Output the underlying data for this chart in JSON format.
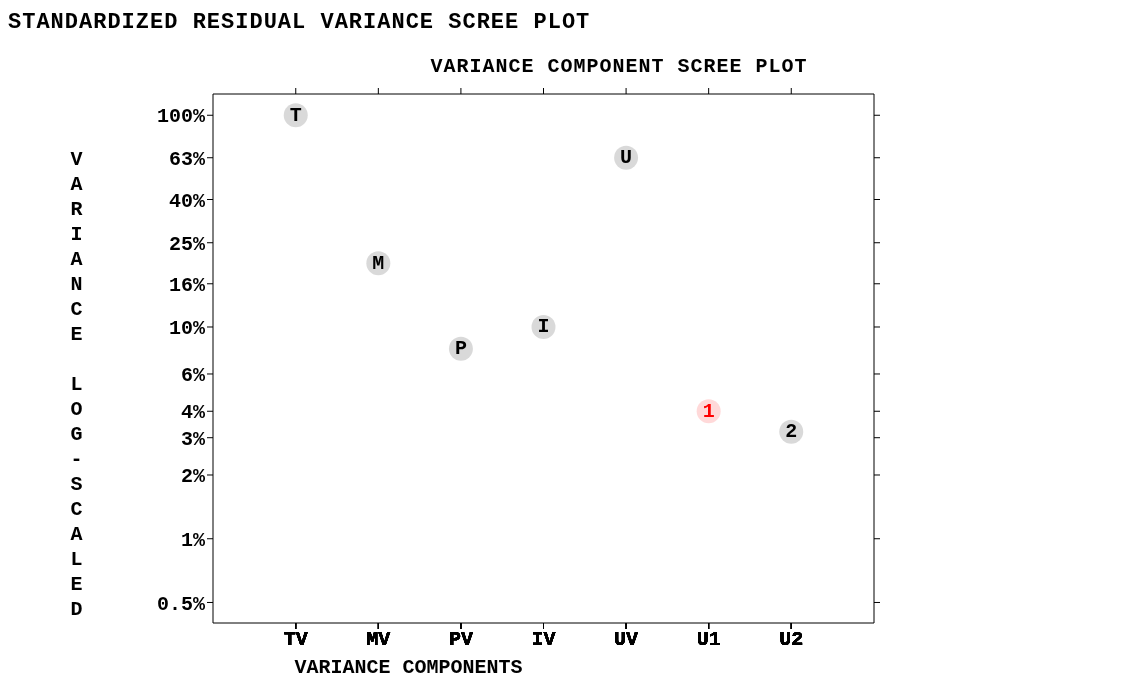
{
  "chart_data": {
    "type": "scatter",
    "title": "STANDARDIZED RESIDUAL VARIANCE SCREE PLOT",
    "subtitle": "VARIANCE COMPONENT SCREE PLOT",
    "xlabel": "VARIANCE COMPONENTS",
    "ylabel": "VARIANCE LOG-SCALED",
    "categories": [
      "TV",
      "MV",
      "PV",
      "IV",
      "UV",
      "U1",
      "U2"
    ],
    "series": [
      {
        "name": "T",
        "color": "#000000",
        "values": [
          100,
          null,
          null,
          null,
          null,
          null,
          null
        ]
      },
      {
        "name": "M",
        "color": "#000000",
        "values": [
          null,
          20,
          null,
          null,
          null,
          null,
          null
        ]
      },
      {
        "name": "P",
        "color": "#000000",
        "values": [
          null,
          null,
          7.9,
          null,
          null,
          null,
          null
        ]
      },
      {
        "name": "I",
        "color": "#000000",
        "values": [
          null,
          null,
          null,
          10,
          null,
          null,
          null
        ]
      },
      {
        "name": "U",
        "color": "#000000",
        "values": [
          null,
          null,
          null,
          null,
          63,
          null,
          null
        ]
      },
      {
        "name": "1",
        "color": "#ff0000",
        "values": [
          null,
          null,
          null,
          null,
          null,
          4,
          null
        ]
      },
      {
        "name": "2",
        "color": "#000000",
        "values": [
          null,
          null,
          null,
          null,
          null,
          null,
          3.2
        ]
      }
    ],
    "log": "y",
    "ylim": [
      0.4,
      126
    ],
    "yticks": [
      {
        "value": 100,
        "label": "100%"
      },
      {
        "value": 63,
        "label": "63%"
      },
      {
        "value": 40,
        "label": "40%"
      },
      {
        "value": 25,
        "label": "25%"
      },
      {
        "value": 16,
        "label": "16%"
      },
      {
        "value": 10,
        "label": "10%"
      },
      {
        "value": 6,
        "label": "6%"
      },
      {
        "value": 4,
        "label": "4%"
      },
      {
        "value": 3,
        "label": "3%"
      },
      {
        "value": 2,
        "label": "2%"
      },
      {
        "value": 1,
        "label": "1%"
      },
      {
        "value": 0.5,
        "label": "0.5%"
      }
    ],
    "grid": false
  }
}
